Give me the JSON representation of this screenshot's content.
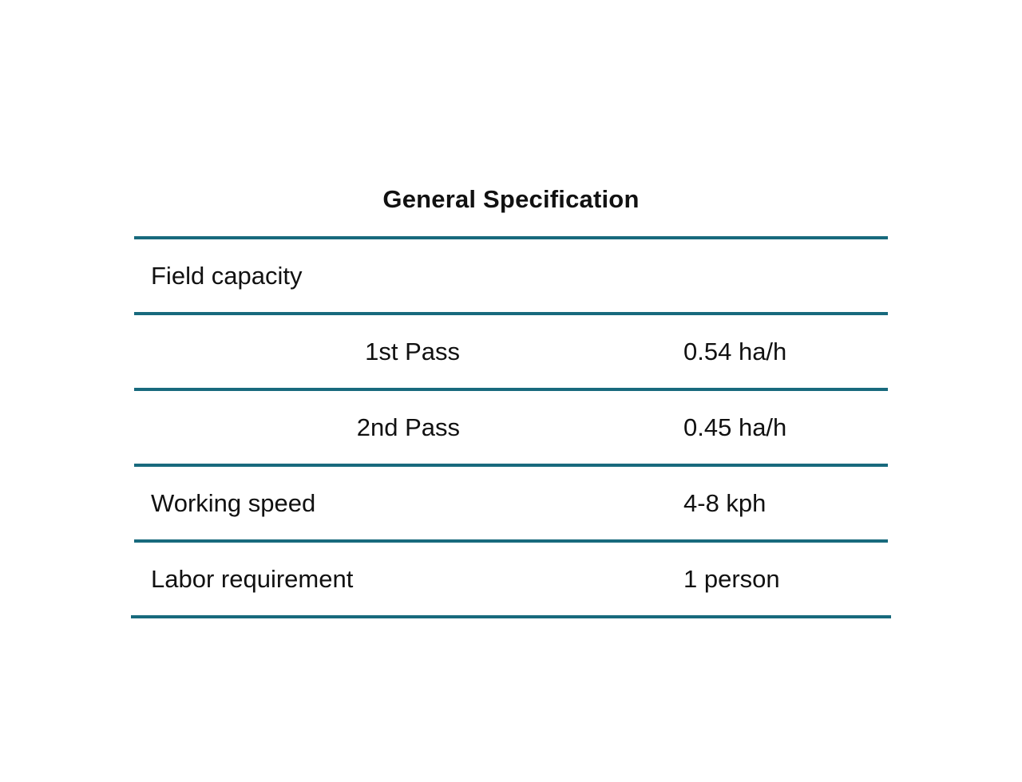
{
  "title": "General Specification",
  "rows": [
    {
      "label": "Field capacity",
      "sublabel": "",
      "value": ""
    },
    {
      "label": "",
      "sublabel": "1st Pass",
      "value": "0.54 ha/h"
    },
    {
      "label": "",
      "sublabel": "2nd Pass",
      "value": "0.45 ha/h"
    },
    {
      "label": "Working speed",
      "sublabel": "",
      "value": "4-8 kph"
    },
    {
      "label": "Labor requirement",
      "sublabel": "",
      "value": "1 person"
    }
  ],
  "colors": {
    "rule": "#186a7d",
    "text": "#111111",
    "background": "#ffffff"
  }
}
